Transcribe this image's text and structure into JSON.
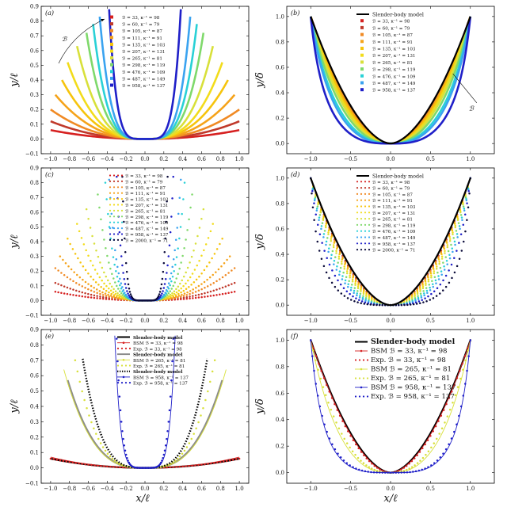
{
  "figure": {
    "shared_xlabel": "x/ℓ",
    "colors": {
      "c33": "#d62020",
      "c60": "#c0392b",
      "c105": "#f08a24",
      "c111": "#f5a31a",
      "c135": "#f6c40c",
      "c207": "#f2dc1b",
      "c265": "#d8e03a",
      "c298": "#7fd96b",
      "c476": "#29d1d6",
      "c487": "#3aa3f0",
      "c958": "#1f1fc8",
      "c2000": "#0b0b3a",
      "sbm": "#000000",
      "gray": "#8c8c8c"
    }
  },
  "chart_data": [
    {
      "id": "a",
      "label": "(a)",
      "type": "line",
      "xlabel": "",
      "ylabel": "y/ℓ",
      "xlim": [
        -1.1,
        1.1
      ],
      "ylim": [
        -0.1,
        0.9
      ],
      "xticks": [
        "−1.0",
        "−0.8",
        "−0.6",
        "−0.4",
        "−0.2",
        "0.0",
        "0.2",
        "0.4",
        "0.6",
        "0.8",
        "1.0"
      ],
      "yticks": [
        "−0.1",
        "0.0",
        "0.1",
        "0.2",
        "0.3",
        "0.4",
        "0.5",
        "0.6",
        "0.7",
        "0.8",
        "0.9"
      ],
      "annotation": "ℬ",
      "legend": [
        "ℬ = 33, κ⁻¹ = 98",
        "ℬ = 60, κ⁻¹ = 79",
        "ℬ = 105, κ⁻¹ = 87",
        "ℬ = 111, κ⁻¹ = 91",
        "ℬ = 135, κ⁻¹ = 103",
        "ℬ = 207, κ⁻¹ = 131",
        "ℬ = 265, κ⁻¹ = 81",
        "ℬ = 298, κ⁻¹ = 119",
        "ℬ = 476, κ⁻¹ = 109",
        "ℬ = 487, κ⁻¹ = 149",
        "ℬ = 958, κ⁻¹ = 137"
      ],
      "series": [
        {
          "name": "ℬ = 33",
          "color": "c33",
          "xmax": 1.0,
          "ymax": 0.06
        },
        {
          "name": "ℬ = 60",
          "color": "c60",
          "xmax": 1.0,
          "ymax": 0.12
        },
        {
          "name": "ℬ = 105",
          "color": "c105",
          "xmax": 1.0,
          "ymax": 0.2
        },
        {
          "name": "ℬ = 111",
          "color": "c111",
          "xmax": 0.95,
          "ymax": 0.3
        },
        {
          "name": "ℬ = 135",
          "color": "c135",
          "xmax": 0.88,
          "ymax": 0.4
        },
        {
          "name": "ℬ = 207",
          "color": "c207",
          "xmax": 0.82,
          "ymax": 0.52
        },
        {
          "name": "ℬ = 265",
          "color": "c265",
          "xmax": 0.72,
          "ymax": 0.63
        },
        {
          "name": "ℬ = 298",
          "color": "c298",
          "xmax": 0.62,
          "ymax": 0.72
        },
        {
          "name": "ℬ = 476",
          "color": "c476",
          "xmax": 0.55,
          "ymax": 0.78
        },
        {
          "name": "ℬ = 487",
          "color": "c487",
          "xmax": 0.48,
          "ymax": 0.83
        },
        {
          "name": "ℬ = 958",
          "color": "c958",
          "xmax": 0.38,
          "ymax": 0.88
        }
      ]
    },
    {
      "id": "b",
      "label": "(b)",
      "type": "line",
      "xlabel": "",
      "ylabel": "y/δ",
      "xlim": [
        -1.3,
        1.3
      ],
      "ylim": [
        -0.08,
        1.08
      ],
      "xticks": [
        "−1.0",
        "−0.5",
        "0.0",
        "0.5",
        "1.0"
      ],
      "yticks": [
        "0.0",
        "0.2",
        "0.4",
        "0.6",
        "0.8",
        "1.0"
      ],
      "annotation": "ℬ",
      "legend_title": "Slender-body model",
      "legend": [
        "ℬ = 33, κ⁻¹ = 98",
        "ℬ = 60, κ⁻¹ = 79",
        "ℬ = 105, κ⁻¹ = 87",
        "ℬ = 111, κ⁻¹ = 91",
        "ℬ = 135, κ⁻¹ = 103",
        "ℬ = 207, κ⁻¹ = 131",
        "ℬ = 265, κ⁻¹ = 81",
        "ℬ = 298, κ⁻¹ = 119",
        "ℬ = 476, κ⁻¹ = 109",
        "ℬ = 487, κ⁻¹ = 149",
        "ℬ = 958, κ⁻¹ = 137"
      ],
      "series": [
        {
          "name": "ℬ = 33",
          "color": "c33",
          "p": 1.85,
          "bulge": 0.0
        },
        {
          "name": "ℬ = 60",
          "color": "c60",
          "p": 1.85,
          "bulge": 0.0
        },
        {
          "name": "ℬ = 105",
          "color": "c105",
          "p": 1.9,
          "bulge": 0.0
        },
        {
          "name": "ℬ = 111",
          "color": "c111",
          "p": 1.95,
          "bulge": 0.0
        },
        {
          "name": "ℬ = 135",
          "color": "c135",
          "p": 2.0,
          "bulge": 0.01
        },
        {
          "name": "ℬ = 207",
          "color": "c207",
          "p": 2.1,
          "bulge": 0.02
        },
        {
          "name": "ℬ = 265",
          "color": "c265",
          "p": 2.2,
          "bulge": 0.02
        },
        {
          "name": "ℬ = 298",
          "color": "c298",
          "p": 2.35,
          "bulge": 0.04
        },
        {
          "name": "ℬ = 476",
          "color": "c476",
          "p": 2.6,
          "bulge": 0.06
        },
        {
          "name": "ℬ = 487",
          "color": "c487",
          "p": 2.8,
          "bulge": 0.07
        },
        {
          "name": "ℬ = 958",
          "color": "c958",
          "p": 3.3,
          "bulge": 0.11
        },
        {
          "name": "Slender-body model",
          "color": "sbm",
          "p": 1.75,
          "bulge": 0.0
        }
      ]
    },
    {
      "id": "c",
      "label": "(c)",
      "type": "scatter",
      "xlabel": "",
      "ylabel": "y/ℓ",
      "xlim": [
        -1.1,
        1.1
      ],
      "ylim": [
        -0.1,
        0.9
      ],
      "xticks": [
        "−1.0",
        "−0.8",
        "−0.6",
        "−0.4",
        "−0.2",
        "0.0",
        "0.2",
        "0.4",
        "0.6",
        "0.8",
        "1.0"
      ],
      "yticks": [
        "−0.1",
        "0.0",
        "0.1",
        "0.2",
        "0.3",
        "0.4",
        "0.5",
        "0.6",
        "0.7",
        "0.8",
        "0.9"
      ],
      "legend": [
        "ℬ = 33, κ⁻¹ = 98",
        "ℬ = 60, κ⁻¹ = 79",
        "ℬ = 105, κ⁻¹ = 87",
        "ℬ = 111, κ⁻¹ = 91",
        "ℬ = 135, κ⁻¹ = 103",
        "ℬ = 207, κ⁻¹ = 131",
        "ℬ = 265, κ⁻¹ = 81",
        "ℬ = 298, κ⁻¹ = 119",
        "ℬ = 476, κ⁻¹ = 109",
        "ℬ = 487, κ⁻¹ = 149",
        "ℬ = 958, κ⁻¹ = 137",
        "ℬ = 2000, κ⁻¹ = 71"
      ],
      "series": [
        {
          "name": "ℬ = 33",
          "color": "c33",
          "xmax": 0.95,
          "ymax": 0.06
        },
        {
          "name": "ℬ = 60",
          "color": "c60",
          "xmax": 0.95,
          "ymax": 0.12
        },
        {
          "name": "ℬ = 105",
          "color": "c105",
          "xmax": 0.95,
          "ymax": 0.22
        },
        {
          "name": "ℬ = 111",
          "color": "c111",
          "xmax": 0.9,
          "ymax": 0.3
        },
        {
          "name": "ℬ = 135",
          "color": "c135",
          "xmax": 0.82,
          "ymax": 0.42
        },
        {
          "name": "ℬ = 207",
          "color": "c207",
          "xmax": 0.72,
          "ymax": 0.52
        },
        {
          "name": "ℬ = 265",
          "color": "c265",
          "xmax": 0.62,
          "ymax": 0.62
        },
        {
          "name": "ℬ = 298",
          "color": "c298",
          "xmax": 0.5,
          "ymax": 0.72
        },
        {
          "name": "ℬ = 476",
          "color": "c476",
          "xmax": 0.42,
          "ymax": 0.8
        },
        {
          "name": "ℬ = 487",
          "color": "c487",
          "xmax": 0.38,
          "ymax": 0.82
        },
        {
          "name": "ℬ = 958",
          "color": "c958",
          "xmax": 0.3,
          "ymax": 0.84
        },
        {
          "name": "ℬ = 2000",
          "color": "c2000",
          "xmax": 0.24,
          "ymax": 0.84
        }
      ]
    },
    {
      "id": "d",
      "label": "(d)",
      "type": "scatter",
      "xlabel": "",
      "ylabel": "y/δ",
      "xlim": [
        -1.3,
        1.3
      ],
      "ylim": [
        -0.08,
        1.08
      ],
      "xticks": [
        "−1.0",
        "−0.5",
        "0.0",
        "0.5",
        "1.0"
      ],
      "yticks": [
        "0.0",
        "0.2",
        "0.4",
        "0.6",
        "0.8",
        "1.0"
      ],
      "legend_title": "Slender-body model",
      "legend": [
        "ℬ = 33, κ⁻¹ = 98",
        "ℬ = 60, κ⁻¹ = 79",
        "ℬ = 105, κ⁻¹ = 87",
        "ℬ = 111, κ⁻¹ = 91",
        "ℬ = 135, κ⁻¹ = 103",
        "ℬ = 207, κ⁻¹ = 131",
        "ℬ = 265, κ⁻¹ = 81",
        "ℬ = 298, κ⁻¹ = 119",
        "ℬ = 476, κ⁻¹ = 109",
        "ℬ = 487, κ⁻¹ = 149",
        "ℬ = 958, κ⁻¹ = 137",
        "ℬ = 2000, κ⁻¹ = 71"
      ],
      "series": [
        {
          "name": "ℬ = 33",
          "color": "c33",
          "p": 1.85,
          "bulge": 0.0
        },
        {
          "name": "ℬ = 60",
          "color": "c60",
          "p": 1.85,
          "bulge": 0.0
        },
        {
          "name": "ℬ = 105",
          "color": "c105",
          "p": 1.9,
          "bulge": 0.0
        },
        {
          "name": "ℬ = 111",
          "color": "c111",
          "p": 1.95,
          "bulge": 0.0
        },
        {
          "name": "ℬ = 135",
          "color": "c135",
          "p": 2.0,
          "bulge": 0.01
        },
        {
          "name": "ℬ = 207",
          "color": "c207",
          "p": 2.1,
          "bulge": 0.02
        },
        {
          "name": "ℬ = 265",
          "color": "c265",
          "p": 2.2,
          "bulge": 0.02
        },
        {
          "name": "ℬ = 298",
          "color": "c298",
          "p": 2.4,
          "bulge": 0.04
        },
        {
          "name": "ℬ = 476",
          "color": "c476",
          "p": 2.6,
          "bulge": 0.06
        },
        {
          "name": "ℬ = 487",
          "color": "c487",
          "p": 2.8,
          "bulge": 0.07
        },
        {
          "name": "ℬ = 958",
          "color": "c958",
          "p": 3.2,
          "bulge": 0.1
        },
        {
          "name": "ℬ = 2000",
          "color": "c2000",
          "p": 3.8,
          "bulge": 0.16
        },
        {
          "name": "Slender-body model",
          "color": "sbm",
          "p": 1.75,
          "bulge": 0.0,
          "line": true
        }
      ]
    },
    {
      "id": "e",
      "label": "(e)",
      "type": "line+scatter",
      "xlabel": "x/ℓ",
      "ylabel": "y/ℓ",
      "xlim": [
        -1.1,
        1.1
      ],
      "ylim": [
        -0.1,
        0.9
      ],
      "xticks": [
        "−1.0",
        "−0.8",
        "−0.6",
        "−0.4",
        "−0.2",
        "0.0",
        "0.2",
        "0.4",
        "0.6",
        "0.8",
        "1.0"
      ],
      "yticks": [
        "−0.1",
        "0.0",
        "0.1",
        "0.2",
        "0.3",
        "0.4",
        "0.5",
        "0.6",
        "0.7",
        "0.8",
        "0.9"
      ],
      "legend": [
        "Slender-body model",
        "BSM ℬ = 33, κ⁻¹ = 98",
        "Exp. ℬ = 33, κ⁻¹ = 98",
        "Slender-body model",
        "BSM ℬ = 265, κ⁻¹ = 81",
        "Exp. ℬ = 265, κ⁻¹ = 81",
        "Slender-body model",
        "BSM ℬ = 958, κ⁻¹ = 137",
        "Exp. ℬ = 958, κ⁻¹ = 137"
      ],
      "series": [
        {
          "name": "Slender-body model ℬ = 33",
          "color": "sbm",
          "style": "solid",
          "xmax": 1.0,
          "ymax": 0.06
        },
        {
          "name": "BSM ℬ = 33",
          "color": "c33",
          "style": "thin",
          "xmax": 1.0,
          "ymax": 0.07
        },
        {
          "name": "Exp. ℬ = 33",
          "color": "c33",
          "style": "dots",
          "xmax": 1.0,
          "ymax": 0.06
        },
        {
          "name": "Slender-body model ℬ = 265",
          "color": "gray",
          "style": "solid",
          "xmax": 0.82,
          "ymax": 0.57
        },
        {
          "name": "BSM ℬ = 265",
          "color": "c265",
          "style": "thin",
          "xmax": 0.86,
          "ymax": 0.64
        },
        {
          "name": "Exp. ℬ = 265",
          "color": "c265",
          "style": "dots",
          "xmax": 0.74,
          "ymax": 0.7
        },
        {
          "name": "Slender-body model ℬ = 958",
          "color": "sbm",
          "style": "dotted",
          "xmax": 0.66,
          "ymax": 0.71
        },
        {
          "name": "BSM ℬ = 958",
          "color": "c958",
          "style": "thin",
          "xmax": 0.32,
          "ymax": 0.86
        },
        {
          "name": "Exp. ℬ = 958",
          "color": "c958",
          "style": "dots",
          "xmax": 0.3,
          "ymax": 0.84
        }
      ]
    },
    {
      "id": "f",
      "label": "(f)",
      "type": "line+scatter",
      "xlabel": "x/ℓ",
      "ylabel": "y/δ",
      "xlim": [
        -1.3,
        1.3
      ],
      "ylim": [
        -0.08,
        1.08
      ],
      "xticks": [
        "−1.0",
        "−0.5",
        "0.0",
        "0.5",
        "1.0"
      ],
      "yticks": [
        "0.0",
        "0.2",
        "0.4",
        "0.6",
        "0.8",
        "1.0"
      ],
      "legend": [
        "Slender-body model",
        "BSM ℬ = 33, κ⁻¹ = 98",
        "Exp. ℬ = 33, κ⁻¹ = 98",
        "BSM ℬ = 265, κ⁻¹ = 81",
        "Exp. ℬ = 265, κ⁻¹ = 81",
        "BSM ℬ = 958, κ⁻¹ = 137",
        "Exp. ℬ = 958, κ⁻¹ = 137"
      ],
      "series": [
        {
          "name": "Slender-body model",
          "color": "sbm",
          "style": "solid",
          "p": 1.75,
          "bulge": 0.0
        },
        {
          "name": "BSM ℬ = 33",
          "color": "c33",
          "style": "thin",
          "p": 1.8,
          "bulge": 0.0
        },
        {
          "name": "Exp. ℬ = 33",
          "color": "c33",
          "style": "dots",
          "p": 1.85,
          "bulge": 0.0
        },
        {
          "name": "BSM ℬ = 265",
          "color": "c265",
          "style": "thin",
          "p": 2.6,
          "bulge": 0.03
        },
        {
          "name": "Exp. ℬ = 265",
          "color": "c265",
          "style": "dots",
          "p": 2.4,
          "bulge": 0.02
        },
        {
          "name": "BSM ℬ = 958",
          "color": "c958",
          "style": "thin",
          "p": 4.0,
          "bulge": 0.1
        },
        {
          "name": "Exp. ℬ = 958",
          "color": "c958",
          "style": "dots",
          "p": 3.8,
          "bulge": 0.1
        }
      ]
    }
  ]
}
